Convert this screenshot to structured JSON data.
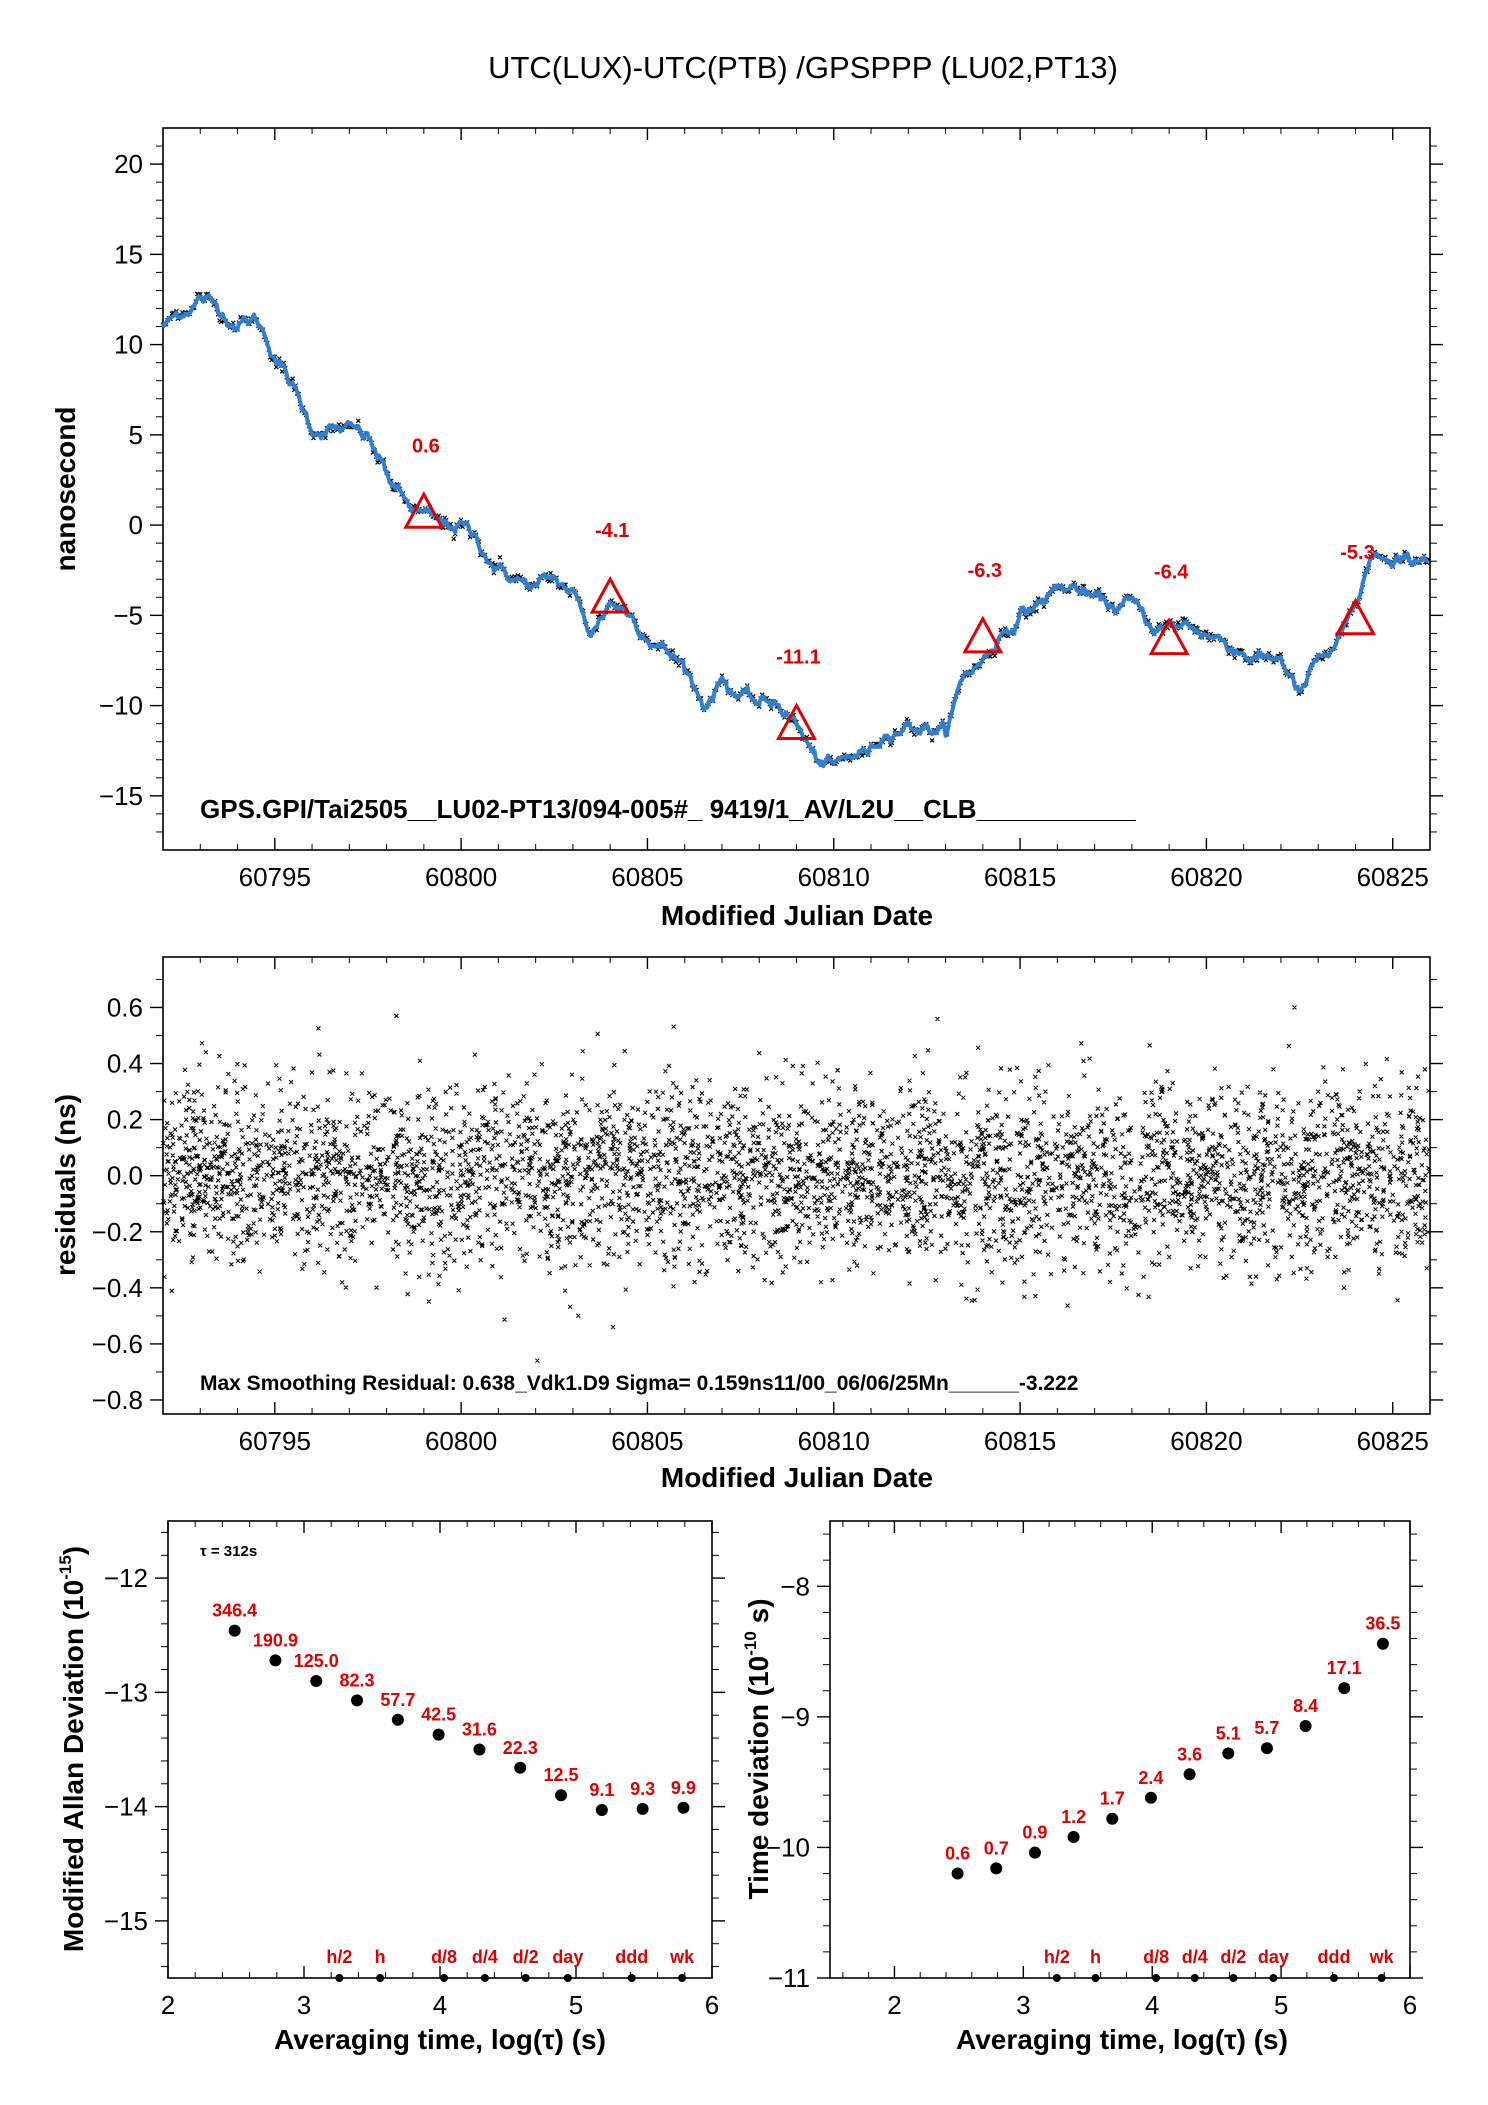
{
  "title": "UTC(LUX)-UTC(PTB)  /GPSPPP  (LU02,PT13)",
  "colors": {
    "line": "#2f80d0",
    "marker": "#e00000",
    "label": "#e00000",
    "axis": "#000000"
  },
  "chart_data": [
    {
      "type": "line",
      "ylabel": "nanosecond",
      "xlabel": "Modified Julian Date",
      "xlim": [
        60792,
        60826
      ],
      "ylim": [
        -18,
        22
      ],
      "xticks": [
        "60795",
        "60800",
        "60805",
        "60810",
        "60815",
        "60820",
        "60825"
      ],
      "yticks": [
        "20",
        "15",
        "10",
        "5",
        "0",
        "−5",
        "−10",
        "−15"
      ],
      "info_text": "GPS.GPI/Tai2505__LU02-PT13/094-005#_  9419/1_AV/L2U__CLB___________",
      "series": [
        {
          "values_x": [
            60792.0,
            60792.5,
            60793.0,
            60793.5,
            60794.0,
            60794.5,
            60795.0,
            60795.5,
            60796.0,
            60796.5,
            60797.0,
            60797.5,
            60798.0,
            60798.5,
            60799.0,
            60799.5,
            60800.0,
            60800.5,
            60801.0,
            60801.5,
            60802.0,
            60802.5,
            60803.0,
            60803.5,
            60804.0,
            60804.5,
            60805.0,
            60805.5,
            60806.0,
            60806.5,
            60807.0,
            60807.5,
            60808.0,
            60808.5,
            60809.0,
            60809.5,
            60810.0,
            60810.5,
            60811.0,
            60811.5,
            60812.0,
            60812.5,
            60813.0,
            60813.5,
            60814.0,
            60814.5,
            60815.0,
            60815.5,
            60816.0,
            60816.5,
            60817.0,
            60817.5,
            60818.0,
            60818.5,
            60819.0,
            60819.5,
            60820.0,
            60820.5,
            60821.0,
            60821.5,
            60822.0,
            60822.5,
            60823.0,
            60823.5,
            60824.0,
            60824.5,
            60825.0,
            60825.5,
            60826.0
          ],
          "values_y": [
            11,
            11.8,
            12.6,
            12,
            11.2,
            11.4,
            9.5,
            7.5,
            5.4,
            5.3,
            5.2,
            4.8,
            2.8,
            1.2,
            0.5,
            -0.1,
            0,
            -1,
            -2.5,
            -3,
            -3.5,
            -3,
            -3.8,
            -6,
            -4.2,
            -4.8,
            -6,
            -7,
            -7.8,
            -10,
            -8.5,
            -9.5,
            -10,
            -9.8,
            -11,
            -13,
            -13.5,
            -12.8,
            -12.5,
            -11.2,
            -11,
            -11.2,
            -11.5,
            -8.3,
            -7.5,
            -6,
            -5,
            -4.3,
            -3.5,
            -3.5,
            -4.2,
            -4.5,
            -4.4,
            -5.5,
            -5.8,
            -5.5,
            -6,
            -6.5,
            -7,
            -7.5,
            -7.3,
            -9.5,
            -7.5,
            -7,
            -4.6,
            -1.5,
            -2.5,
            -2,
            -1.5
          ]
        },
        {
          "name": "markers",
          "x": [
            60799,
            60804,
            60809,
            60814,
            60819,
            60824
          ],
          "y": [
            0.6,
            -4.1,
            -11.1,
            -6.3,
            -6.4,
            -5.3
          ],
          "labels": [
            "0.6",
            "-4.1",
            "-11.1",
            "-6.3",
            "-6.4",
            "-5.3"
          ]
        }
      ]
    },
    {
      "type": "scatter",
      "ylabel": "residuals (ns)",
      "xlabel": "Modified Julian Date",
      "xlim": [
        60792,
        60826
      ],
      "ylim": [
        -0.85,
        0.78
      ],
      "xticks": [
        "60795",
        "60800",
        "60805",
        "60810",
        "60815",
        "60820",
        "60825"
      ],
      "yticks": [
        "0.6",
        "0.4",
        "0.2",
        "0.0",
        "−0.2",
        "−0.4",
        "−0.6",
        "−0.8"
      ],
      "info_text": "Max Smoothing Residual: 0.638_Vdk1.D9  Sigma= 0.159ns11/00_06/06/25Mn______-3.222",
      "sigma": 0.159,
      "max_residual": 0.638
    },
    {
      "type": "scatter",
      "ylabel": "Modified Allan Deviation (10",
      "ylabel_sup": "-15",
      "ylabel_tail": ")",
      "xlabel": "Averaging time, log(τ) (s)",
      "xlim": [
        2,
        6
      ],
      "ylim": [
        -15.5,
        -11.5
      ],
      "xticks": [
        "2",
        "3",
        "4",
        "5",
        "6"
      ],
      "yticks": [
        "−12",
        "−13",
        "−14",
        "−15"
      ],
      "tau_note": "τ = 312s",
      "x": [
        2.49,
        2.79,
        3.09,
        3.39,
        3.69,
        3.99,
        4.29,
        4.59,
        4.89,
        5.19,
        5.49,
        5.79
      ],
      "y": [
        -12.46,
        -12.72,
        -12.9,
        -13.07,
        -13.24,
        -13.37,
        -13.5,
        -13.66,
        -13.9,
        -14.03,
        -14.02,
        -14.01
      ],
      "labels": [
        "346.4",
        "190.9",
        "125.0",
        "82.3",
        "57.7",
        "42.5",
        "31.6",
        "22.3",
        "12.5",
        "9.1",
        "9.3",
        "9.9"
      ],
      "markers": [
        {
          "x": 3.26,
          "label": "h/2"
        },
        {
          "x": 3.56,
          "label": "h"
        },
        {
          "x": 4.03,
          "label": "d/8"
        },
        {
          "x": 4.33,
          "label": "d/4"
        },
        {
          "x": 4.63,
          "label": "d/2"
        },
        {
          "x": 4.94,
          "label": "day"
        },
        {
          "x": 5.41,
          "label": "ddd"
        },
        {
          "x": 5.78,
          "label": "wk"
        }
      ]
    },
    {
      "type": "scatter",
      "ylabel": "Time deviation (10",
      "ylabel_sup": "-10",
      "ylabel_tail": " s)",
      "xlabel": "Averaging time, log(τ) (s)",
      "xlim": [
        1.5,
        6
      ],
      "ylim": [
        -11,
        -7.5
      ],
      "xticks": [
        "2",
        "3",
        "4",
        "5",
        "6"
      ],
      "yticks": [
        "−8",
        "−9",
        "−10",
        "−11"
      ],
      "x": [
        2.49,
        2.79,
        3.09,
        3.39,
        3.69,
        3.99,
        4.29,
        4.59,
        4.89,
        5.19,
        5.49,
        5.79
      ],
      "y": [
        -10.2,
        -10.16,
        -10.04,
        -9.92,
        -9.78,
        -9.62,
        -9.44,
        -9.28,
        -9.24,
        -9.07,
        -8.78,
        -8.44
      ],
      "labels": [
        "0.6",
        "0.7",
        "0.9",
        "1.2",
        "1.7",
        "2.4",
        "3.6",
        "5.1",
        "5.7",
        "8.4",
        "17.1",
        "36.5"
      ],
      "markers": [
        {
          "x": 3.26,
          "label": "h/2"
        },
        {
          "x": 3.56,
          "label": "h"
        },
        {
          "x": 4.03,
          "label": "d/8"
        },
        {
          "x": 4.33,
          "label": "d/4"
        },
        {
          "x": 4.63,
          "label": "d/2"
        },
        {
          "x": 4.94,
          "label": "day"
        },
        {
          "x": 5.41,
          "label": "ddd"
        },
        {
          "x": 5.78,
          "label": "wk"
        }
      ]
    }
  ]
}
